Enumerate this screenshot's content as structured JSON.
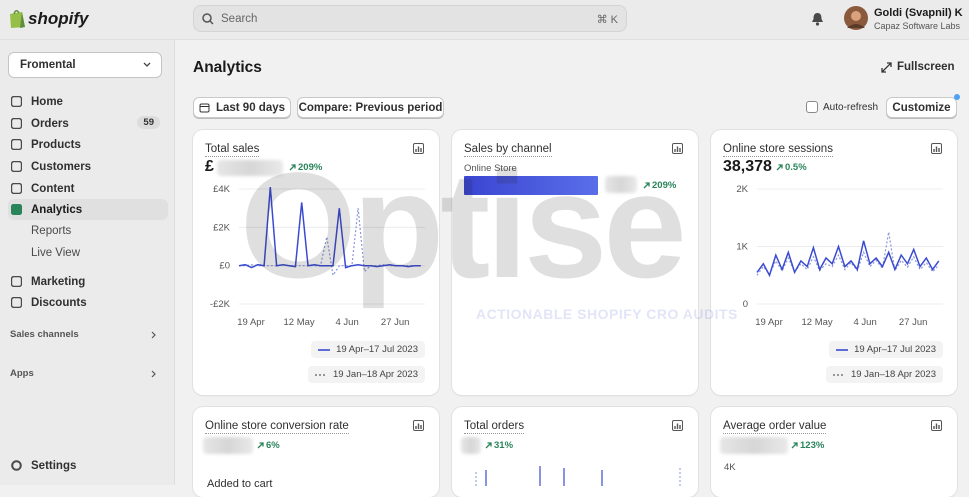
{
  "topbar": {
    "logo": "shopify",
    "search": "Search",
    "shortcut": "⌘ K",
    "user_name": "Goldi (Svapnil) K",
    "user_org": "Capaz Software Labs"
  },
  "sidebar": {
    "store": "Fromental",
    "nav": [
      {
        "label": "Home"
      },
      {
        "label": "Orders",
        "badge": 59
      },
      {
        "label": "Products"
      },
      {
        "label": "Customers"
      },
      {
        "label": "Content"
      },
      {
        "label": "Analytics"
      },
      {
        "label": "Reports"
      },
      {
        "label": "Live View"
      },
      {
        "label": "Marketing"
      },
      {
        "label": "Discounts"
      }
    ],
    "sections": [
      "Sales channels",
      "Apps"
    ],
    "settings": "Settings"
  },
  "header": {
    "title": "Analytics",
    "fullscreen": "Fullscreen",
    "date_range": "Last 90 days",
    "compare": "Compare: Previous period",
    "auto_refresh": "Auto-refresh",
    "customize": "Customize"
  },
  "watermark": {
    "title": "Optise",
    "tagline": "ACTIONABLE SHOPIFY CRO AUDITS"
  },
  "cards": [
    {
      "title": "Total sales",
      "prefix": "£",
      "change": "209%",
      "chart": {
        "type": "line",
        "xlim": [
          0,
          89
        ],
        "xticks": [
          {
            "value": 0,
            "label": "19 Apr"
          },
          {
            "value": 23,
            "label": "12 May"
          },
          {
            "value": 46,
            "label": "4 Jun"
          },
          {
            "value": 69,
            "label": "27 Jun"
          }
        ],
        "ylim": [
          -2000,
          4000
        ],
        "yticks": [
          {
            "value": -2000,
            "label": "-£2K"
          },
          {
            "value": 0,
            "label": "£0"
          },
          {
            "value": 2000,
            "label": "£2K"
          },
          {
            "value": 4000,
            "label": "£4K"
          }
        ],
        "x": [
          0,
          3,
          6,
          9,
          12,
          15,
          18,
          21,
          24,
          27,
          30,
          33,
          36,
          39,
          42,
          45,
          48,
          51,
          54,
          57,
          60,
          63,
          66,
          69,
          72,
          75,
          78,
          81,
          84,
          87
        ],
        "series": [
          {
            "name": "19 Apr–17 Jul 2023",
            "color": "#3b4bd1",
            "dash": false,
            "values": [
              0,
              50,
              -100,
              50,
              0,
              4100,
              0,
              50,
              0,
              -50,
              3300,
              0,
              50,
              0,
              0,
              0,
              3000,
              -100,
              0,
              50,
              0,
              0,
              -50,
              0,
              50,
              0,
              0,
              -50,
              0,
              0
            ]
          },
          {
            "name": "19 Jan–18 Apr 2023",
            "color": "#8a95d8",
            "dash": true,
            "values": [
              0,
              0,
              50,
              0,
              0,
              0,
              0,
              50,
              0,
              0,
              0,
              0,
              0,
              0,
              1500,
              -500,
              0,
              0,
              0,
              3000,
              -300,
              0,
              0,
              50,
              0,
              0,
              0,
              0,
              0,
              0
            ]
          }
        ]
      }
    },
    {
      "title": "Sales by channel",
      "channel": "Online Store",
      "change": "209%"
    },
    {
      "title": "Online store sessions",
      "value": "38,378",
      "change": "0.5%",
      "chart": {
        "type": "line",
        "xlim": [
          0,
          89
        ],
        "xticks": [
          {
            "value": 0,
            "label": "19 Apr"
          },
          {
            "value": 23,
            "label": "12 May"
          },
          {
            "value": 46,
            "label": "4 Jun"
          },
          {
            "value": 69,
            "label": "27 Jun"
          }
        ],
        "ylim": [
          0,
          2000
        ],
        "yticks": [
          0,
          {
            "value": 1000,
            "label": "1K"
          },
          {
            "value": 2000,
            "label": "2K"
          }
        ],
        "x": [
          0,
          3,
          6,
          9,
          12,
          15,
          18,
          21,
          24,
          27,
          30,
          33,
          36,
          39,
          42,
          45,
          48,
          51,
          54,
          57,
          60,
          63,
          66,
          69,
          72,
          75,
          78,
          81,
          84,
          87
        ],
        "series": [
          {
            "name": "19 Apr–17 Jul 2023",
            "color": "#3b4bd1",
            "dash": false,
            "values": [
              550,
              700,
              500,
              850,
              600,
              900,
              550,
              750,
              650,
              980,
              600,
              800,
              700,
              1000,
              650,
              750,
              600,
              1100,
              700,
              800,
              650,
              900,
              600,
              850,
              700,
              950,
              650,
              800,
              600,
              750
            ]
          },
          {
            "name": "19 Jan–18 Apr 2023",
            "color": "#8a95d8",
            "dash": true,
            "values": [
              500,
              650,
              520,
              750,
              580,
              800,
              560,
              700,
              600,
              820,
              580,
              700,
              650,
              850,
              600,
              720,
              580,
              900,
              650,
              760,
              620,
              1250,
              580,
              760,
              640,
              820,
              600,
              720,
              560,
              680
            ]
          }
        ]
      }
    },
    {
      "title": "Online store conversion rate",
      "change": "6%",
      "subtitle": "Added to cart"
    },
    {
      "title": "Total orders",
      "change": "31%"
    },
    {
      "title": "Average order value",
      "change": "123%",
      "ytick": "4K"
    }
  ]
}
